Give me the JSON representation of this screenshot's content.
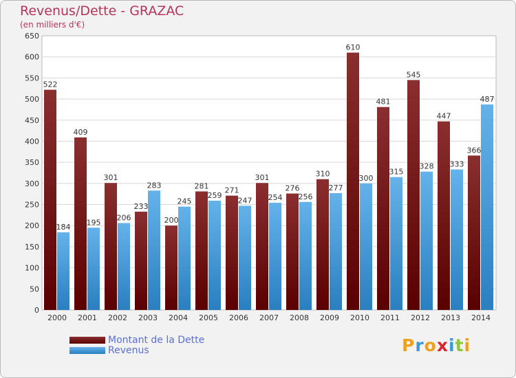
{
  "title": "Revenus/Dette - GRAZAC",
  "subtitle": "(en milliers d'€)",
  "colors": {
    "dette_top": "#8a2e30",
    "dette_bottom": "#5a0000",
    "revenus_top": "#64b2ea",
    "revenus_bottom": "#2a7fc0"
  },
  "logo": {
    "letters": [
      "P",
      "r",
      "o",
      "x",
      "i",
      "t",
      "i"
    ],
    "colors": [
      "#f0a020",
      "#3a9ad8",
      "#f0a020",
      "#d9252e",
      "#3a9ad8",
      "#8dc63f",
      "#f0a020"
    ]
  },
  "chart_data": {
    "type": "bar",
    "categories": [
      "2000",
      "2001",
      "2002",
      "2003",
      "2004",
      "2005",
      "2006",
      "2007",
      "2008",
      "2009",
      "2010",
      "2011",
      "2012",
      "2013",
      "2014"
    ],
    "series": [
      {
        "name": "Montant de la Dette",
        "values": [
          522,
          409,
          301,
          233,
          200,
          281,
          271,
          301,
          276,
          310,
          610,
          481,
          545,
          447,
          366
        ]
      },
      {
        "name": "Revenus",
        "values": [
          184,
          195,
          206,
          283,
          245,
          259,
          247,
          254,
          256,
          277,
          300,
          315,
          328,
          333,
          487
        ]
      }
    ],
    "ylim": [
      0,
      650
    ],
    "yticks": [
      0,
      50,
      100,
      150,
      200,
      250,
      300,
      350,
      400,
      450,
      500,
      550,
      600,
      650
    ],
    "grid": true,
    "legend": "bottom-left"
  }
}
